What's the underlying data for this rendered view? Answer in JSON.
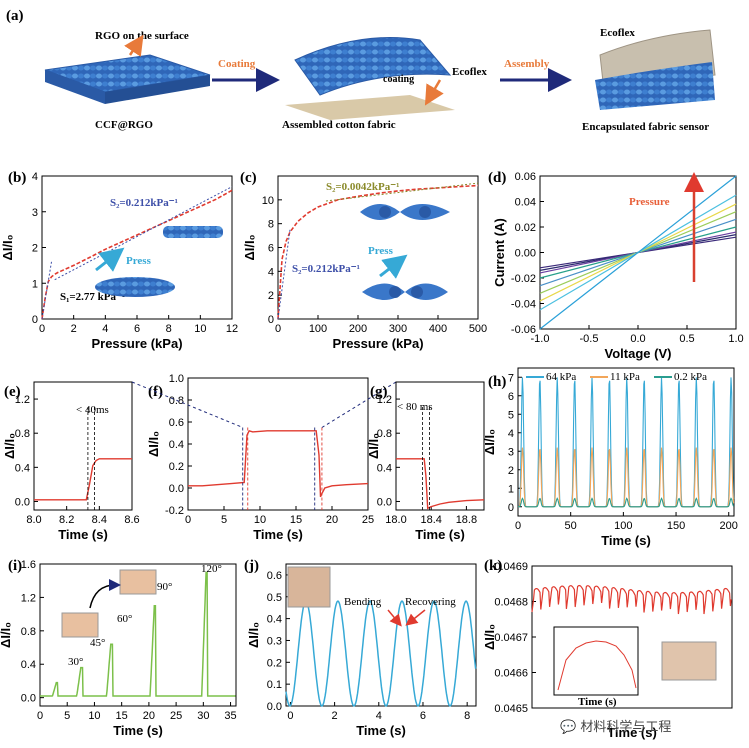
{
  "panel_a": {
    "label": "(a)",
    "rgo_label": "RGO on the surface",
    "coating_arrow": "Coating",
    "coating_text": "coating",
    "ecoflex_text": "Ecoflex",
    "assembly_arrow": "Assembly",
    "ecoflex_top": "Ecoflex",
    "ccf_label": "CCF@RGO",
    "assembled_label": "Assembled cotton fabric",
    "encapsulated_label": "Encapsulated fabric sensor"
  },
  "annotations": {
    "b_s2": "S₂=0.212kPa⁻¹",
    "b_s1": "S₁=2.77 kPa⁻¹",
    "b_press": "Press",
    "c_s2a": "S₂=0.0042kPa⁻¹",
    "c_s2b": "S₂=0.212kPa⁻¹",
    "c_press": "Press",
    "d_pressure": "Pressure",
    "e_time": "< 40ms",
    "g_time": "< 80 ms",
    "i_angles": [
      "30°",
      "45°",
      "60°",
      "90°",
      "120°"
    ],
    "j_bending": "Bending",
    "j_recovering": "Recovering",
    "k_inset_xlabel": "Time (s)",
    "watermark": "💬 材料科学与工程"
  },
  "colors": {
    "red": "#e03a2f",
    "blue": "#3d4fa8",
    "olive": "#8a8a2a",
    "green": "#7cc04a",
    "cyan": "#36a9d6",
    "orange": "#f2a65a",
    "teal": "#2a9d8f",
    "fabric": "#3a77c9"
  },
  "chart_data": [
    {
      "id": "b",
      "label": "(b)",
      "type": "line",
      "xlabel": "Pressure (kPa)",
      "ylabel": "ΔI/I₀",
      "xlim": [
        0,
        12
      ],
      "ylim": [
        0,
        4
      ],
      "xticks": [
        "0",
        "2",
        "4",
        "6",
        "8",
        "10",
        "12"
      ],
      "yticks": [
        "0",
        "1",
        "2",
        "3",
        "4"
      ],
      "series": [
        {
          "name": "data",
          "x": [
            0,
            0.2,
            0.4,
            0.6,
            0.8,
            1,
            2,
            3,
            4,
            5,
            6,
            7,
            8,
            9,
            10,
            11,
            12
          ],
          "y": [
            0,
            0.6,
            1.05,
            1.18,
            1.25,
            1.3,
            1.5,
            1.72,
            1.95,
            2.15,
            2.35,
            2.55,
            2.75,
            2.95,
            3.15,
            3.35,
            3.6
          ]
        }
      ]
    },
    {
      "id": "c",
      "label": "(c)",
      "type": "line",
      "xlabel": "Pressure (kPa)",
      "ylabel": "ΔI/I₀",
      "xlim": [
        0,
        500
      ],
      "ylim": [
        0,
        12
      ],
      "xticks": [
        "0",
        "100",
        "200",
        "300",
        "400",
        "500"
      ],
      "yticks": [
        "0",
        "2",
        "4",
        "6",
        "8",
        "10"
      ],
      "series": [
        {
          "name": "data",
          "x": [
            0,
            10,
            20,
            30,
            50,
            75,
            100,
            150,
            200,
            250,
            300,
            350,
            400,
            450,
            500
          ],
          "y": [
            0,
            5,
            6.5,
            7.3,
            8.2,
            8.9,
            9.4,
            10,
            10.3,
            10.55,
            10.75,
            10.9,
            11.0,
            11.1,
            11.2
          ]
        }
      ]
    },
    {
      "id": "d",
      "label": "(d)",
      "type": "line",
      "xlabel": "Voltage (V)",
      "ylabel": "Current (A)",
      "xlim": [
        -1,
        1
      ],
      "ylim": [
        -0.06,
        0.06
      ],
      "xticks": [
        "-1.0",
        "-0.5",
        "0.0",
        "0.5",
        "1.0"
      ],
      "yticks": [
        "-0.06",
        "-0.04",
        "-0.02",
        "0.00",
        "0.02",
        "0.04",
        "0.06"
      ],
      "series": [
        {
          "name": "s1",
          "slope": 0.012,
          "color": "#3b2a7a"
        },
        {
          "name": "s2",
          "slope": 0.014,
          "color": "#2b2b6e"
        },
        {
          "name": "s3",
          "slope": 0.016,
          "color": "#6a3fa0"
        },
        {
          "name": "s4",
          "slope": 0.02,
          "color": "#27a08a"
        },
        {
          "name": "s5",
          "slope": 0.026,
          "color": "#4a90c8"
        },
        {
          "name": "s6",
          "slope": 0.032,
          "color": "#9ccc5a"
        },
        {
          "name": "s7",
          "slope": 0.038,
          "color": "#e8d84a"
        },
        {
          "name": "s8",
          "slope": 0.045,
          "color": "#4cc0e0"
        },
        {
          "name": "s9",
          "slope": 0.06,
          "color": "#2aa0d8"
        }
      ]
    },
    {
      "id": "e",
      "label": "(e)",
      "type": "line",
      "xlabel": "Time (s)",
      "ylabel": "ΔI/I₀",
      "xlim": [
        8.0,
        8.6
      ],
      "ylim": [
        -0.1,
        1.4
      ],
      "xticks": [
        "8.0",
        "8.2",
        "8.4",
        "8.6"
      ],
      "yticks": [
        "0.0",
        "0.4",
        "0.8",
        "1.2"
      ],
      "series": [
        {
          "name": "data",
          "x": [
            8.0,
            8.1,
            8.2,
            8.3,
            8.32,
            8.34,
            8.36,
            8.38,
            8.4,
            8.5,
            8.6
          ],
          "y": [
            0.02,
            0.02,
            0.02,
            0.02,
            0.02,
            0.2,
            0.42,
            0.48,
            0.5,
            0.5,
            0.5
          ]
        }
      ]
    },
    {
      "id": "f",
      "label": "(f)",
      "type": "line",
      "xlabel": "Time (s)",
      "ylabel": "ΔI/I₀",
      "xlim": [
        0,
        25
      ],
      "ylim": [
        -0.2,
        1.0
      ],
      "xticks": [
        "0",
        "5",
        "10",
        "15",
        "20",
        "25"
      ],
      "yticks": [
        "-0.2",
        "0.0",
        "0.2",
        "0.4",
        "0.6",
        "0.8",
        "1.0"
      ],
      "series": [
        {
          "name": "data",
          "x": [
            0,
            2,
            4,
            6,
            7.8,
            8.2,
            8.5,
            9,
            11,
            13,
            15,
            17,
            17.8,
            18.2,
            18.4,
            18.6,
            19,
            20,
            22,
            25
          ],
          "y": [
            0.02,
            0.02,
            0.03,
            0.04,
            0.05,
            0.48,
            0.52,
            0.51,
            0.52,
            0.52,
            0.52,
            0.52,
            0.52,
            0.3,
            -0.08,
            -0.05,
            0.0,
            0.02,
            0.03,
            0.04
          ]
        }
      ]
    },
    {
      "id": "g",
      "label": "(g)",
      "type": "line",
      "xlabel": "Time (s)",
      "ylabel": "ΔI/I₀",
      "xlim": [
        18.0,
        19.0
      ],
      "ylim": [
        -0.1,
        1.4
      ],
      "xticks": [
        "18.0",
        "18.4",
        "18.8"
      ],
      "yticks": [
        "0.0",
        "0.4",
        "0.8",
        "1.2"
      ],
      "series": [
        {
          "name": "data",
          "x": [
            18.0,
            18.2,
            18.3,
            18.32,
            18.34,
            18.36,
            18.4,
            18.5,
            18.6,
            18.8,
            19.0
          ],
          "y": [
            0.5,
            0.5,
            0.5,
            0.5,
            0.3,
            -0.08,
            -0.06,
            -0.03,
            -0.01,
            0.01,
            0.02
          ]
        }
      ]
    },
    {
      "id": "h",
      "label": "(h)",
      "type": "line",
      "xlabel": "Time (s)",
      "ylabel": "ΔI/I₀",
      "xlim": [
        0,
        205
      ],
      "ylim": [
        -0.5,
        7.5
      ],
      "xticks": [
        "0",
        "50",
        "100",
        "150",
        "200"
      ],
      "yticks": [
        "0",
        "1",
        "2",
        "3",
        "4",
        "5",
        "6",
        "7"
      ],
      "series": [
        {
          "name": "64 kPa",
          "peak": 7.0,
          "period": 16.5,
          "color": "#36a9d6"
        },
        {
          "name": "11 kPa",
          "peak": 3.2,
          "period": 16.5,
          "color": "#f2a65a"
        },
        {
          "name": "0.2 kPa",
          "peak": 0.45,
          "period": 16.5,
          "color": "#2a9d8f"
        }
      ]
    },
    {
      "id": "i",
      "label": "(i)",
      "type": "line",
      "xlabel": "Time (s)",
      "ylabel": "ΔI/I₀",
      "xlim": [
        0,
        36
      ],
      "ylim": [
        -0.1,
        1.6
      ],
      "xticks": [
        "0",
        "5",
        "10",
        "15",
        "20",
        "25",
        "30",
        "35"
      ],
      "yticks": [
        "0.0",
        "0.4",
        "0.8",
        "1.2",
        "1.6"
      ],
      "series": [
        {
          "name": "bend",
          "peaks": [
            {
              "t": 3,
              "h": 0.18
            },
            {
              "t": 7.5,
              "h": 0.36
            },
            {
              "t": 13,
              "h": 0.64
            },
            {
              "t": 21,
              "h": 1.1
            },
            {
              "t": 30.5,
              "h": 1.5
            }
          ],
          "color": "#7cc04a"
        }
      ]
    },
    {
      "id": "j",
      "label": "(j)",
      "type": "line",
      "xlabel": "Time (s)",
      "ylabel": "ΔI/I₀",
      "xlim": [
        -0.2,
        8.4
      ],
      "ylim": [
        0,
        0.65
      ],
      "xticks": [
        "0",
        "2",
        "4",
        "6",
        "8"
      ],
      "yticks": [
        "0.0",
        "0.1",
        "0.2",
        "0.3",
        "0.4",
        "0.5",
        "0.6"
      ],
      "series": [
        {
          "name": "bending",
          "period": 1.45,
          "peak": 0.48,
          "color": "#36a9d6"
        }
      ]
    },
    {
      "id": "k",
      "label": "(k)",
      "type": "line",
      "xlabel": "Time (s)",
      "ylabel": "ΔI/I₀",
      "xlim": [
        0,
        100
      ],
      "ylim": [
        0.0465,
        0.0469
      ],
      "xticks": [],
      "yticks": [
        "0.0465",
        "0.0466",
        "0.0467",
        "0.0468",
        "0.0469"
      ],
      "series": [
        {
          "name": "pulse",
          "mean": 0.04682,
          "amp": 5e-05,
          "period": 4.3,
          "color": "#e03a2f"
        }
      ]
    }
  ]
}
